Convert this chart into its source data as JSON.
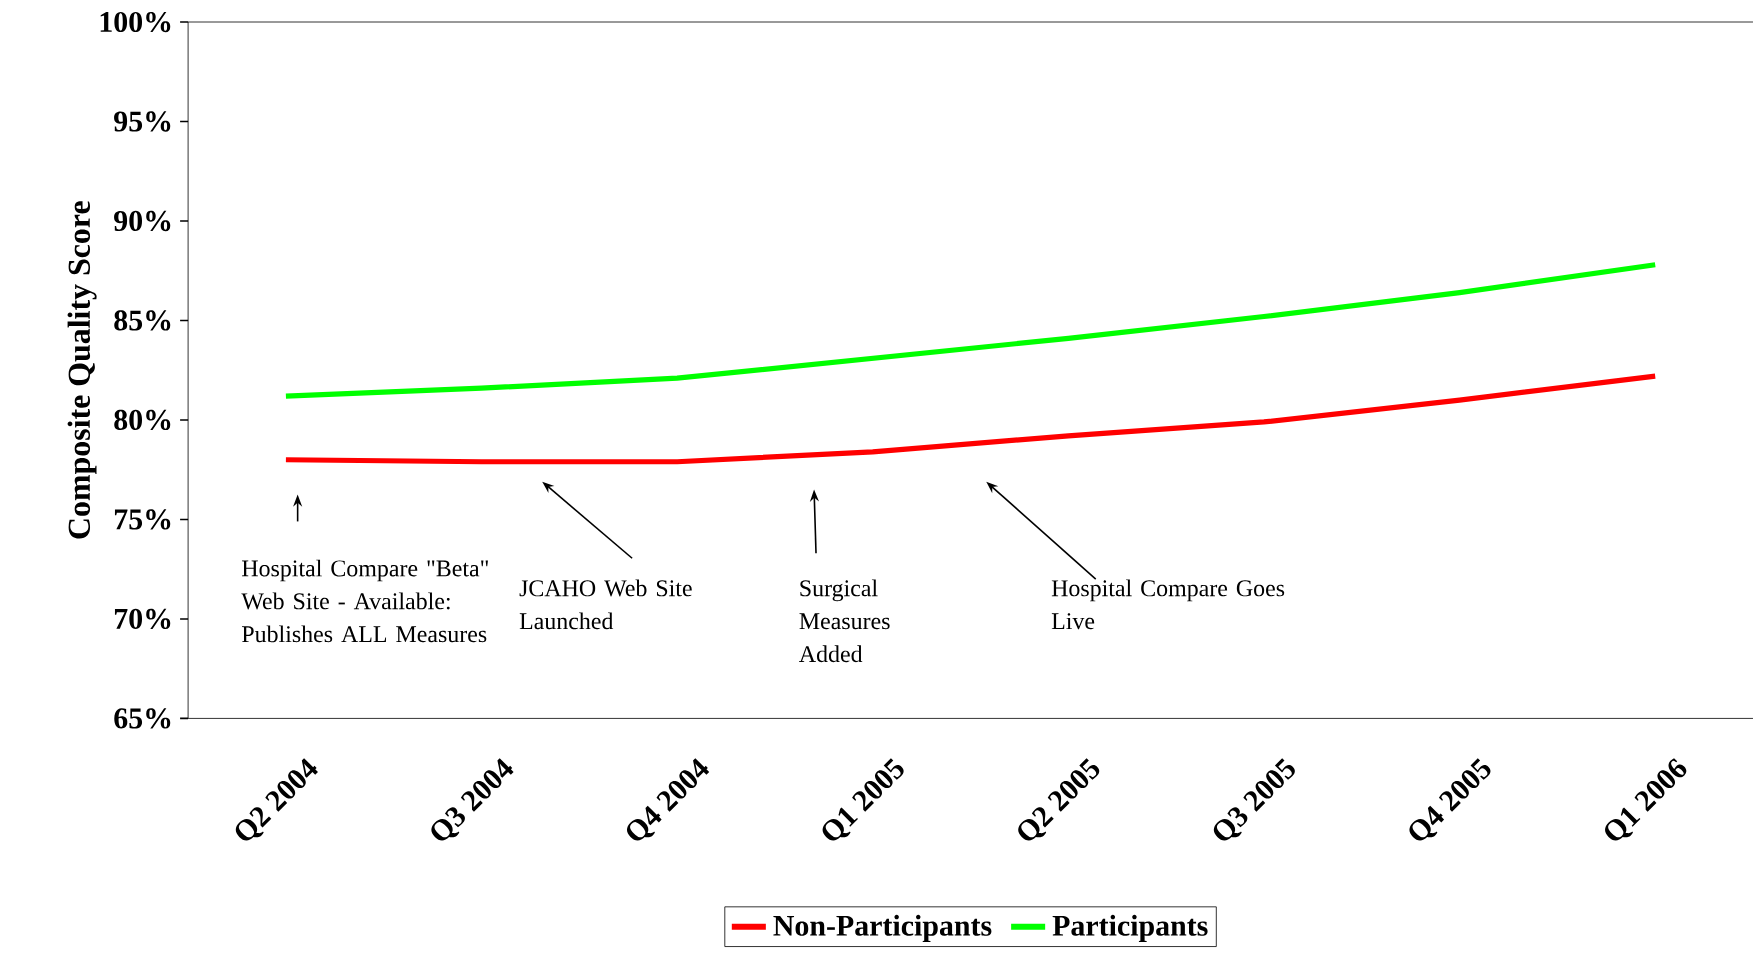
{
  "chart_data": {
    "type": "line",
    "ylabel": "Composite Quality Score",
    "categories": [
      "Q2 2004",
      "Q3 2004",
      "Q4 2004",
      "Q1 2005",
      "Q2 2005",
      "Q3 2005",
      "Q4 2005",
      "Q1 2006"
    ],
    "series": [
      {
        "name": "Non-Participants",
        "color": "#ff0000",
        "values": [
          78.0,
          77.9,
          77.9,
          78.4,
          79.2,
          79.9,
          81.0,
          82.2
        ]
      },
      {
        "name": "Participants",
        "color": "#00ff00",
        "values": [
          81.2,
          81.6,
          82.1,
          83.1,
          84.1,
          85.2,
          86.4,
          87.8
        ]
      }
    ],
    "ylim": [
      65,
      100
    ],
    "yticks": [
      {
        "value": 65,
        "label": "65%"
      },
      {
        "value": 70,
        "label": "70%"
      },
      {
        "value": 75,
        "label": "75%"
      },
      {
        "value": 80,
        "label": "80%"
      },
      {
        "value": 85,
        "label": "85%"
      },
      {
        "value": 90,
        "label": "90%"
      },
      {
        "value": 95,
        "label": "95%"
      },
      {
        "value": 100,
        "label": "100%"
      }
    ],
    "annotations": [
      "Hospital Compare \"Beta\" Web Site - Available: Publishes ALL Measures",
      "JCAHO Web Site Launched",
      "Surgical Measures Added",
      "Hospital Compare Goes Live"
    ],
    "legend": "bottom",
    "grid": false,
    "marker": "none",
    "line_style": "solid"
  }
}
